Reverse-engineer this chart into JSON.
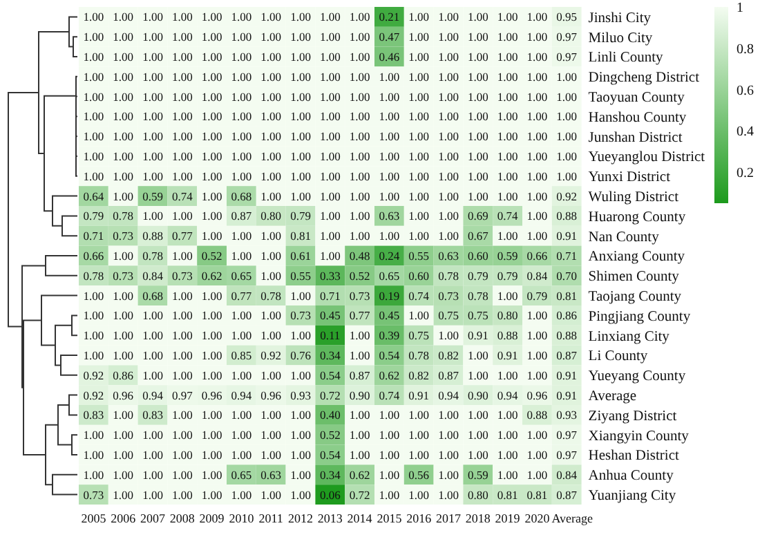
{
  "chart_data": {
    "type": "heatmap",
    "categories": [
      "2005",
      "2006",
      "2007",
      "2008",
      "2009",
      "2010",
      "2011",
      "2012",
      "2013",
      "2014",
      "2015",
      "2016",
      "2017",
      "2018",
      "2019",
      "2020",
      "Average"
    ],
    "y_categories": [
      "Jinshi City",
      "Miluo City",
      "Linli County",
      "Dingcheng District",
      "Taoyuan County",
      "Hanshou County",
      "Junshan District",
      "Yueyanglou District",
      "Yunxi District",
      "Wuling District",
      "Huarong County",
      "Nan County",
      "Anxiang County",
      "Shimen County",
      "Taojang County",
      "Pingjiang County",
      "Linxiang City",
      "Li County",
      "Yueyang County",
      "Average",
      "Ziyang District",
      "Xiangyin County",
      "Heshan District",
      "Anhua County",
      "Yuanjiang City"
    ],
    "cells": [
      [
        1,
        1,
        1,
        1,
        1,
        1,
        1,
        1,
        1,
        1,
        0.21,
        1,
        1,
        1,
        1,
        1,
        0.95
      ],
      [
        1,
        1,
        1,
        1,
        1,
        1,
        1,
        1,
        1,
        1,
        0.47,
        1,
        1,
        1,
        1,
        1,
        0.97
      ],
      [
        1,
        1,
        1,
        1,
        1,
        1,
        1,
        1,
        1,
        1,
        0.46,
        1,
        1,
        1,
        1,
        1,
        0.97
      ],
      [
        1,
        1,
        1,
        1,
        1,
        1,
        1,
        1,
        1,
        1,
        1,
        1,
        1,
        1,
        1,
        1,
        1
      ],
      [
        1,
        1,
        1,
        1,
        1,
        1,
        1,
        1,
        1,
        1,
        1,
        1,
        1,
        1,
        1,
        1,
        1
      ],
      [
        1,
        1,
        1,
        1,
        1,
        1,
        1,
        1,
        1,
        1,
        1,
        1,
        1,
        1,
        1,
        1,
        1
      ],
      [
        1,
        1,
        1,
        1,
        1,
        1,
        1,
        1,
        1,
        1,
        1,
        1,
        1,
        1,
        1,
        1,
        1
      ],
      [
        1,
        1,
        1,
        1,
        1,
        1,
        1,
        1,
        1,
        1,
        1,
        1,
        1,
        1,
        1,
        1,
        1
      ],
      [
        1,
        1,
        1,
        1,
        1,
        1,
        1,
        1,
        1,
        1,
        1,
        1,
        1,
        1,
        1,
        1,
        1
      ],
      [
        0.64,
        1,
        0.59,
        0.74,
        1,
        0.68,
        1,
        1,
        1,
        1,
        1,
        1,
        1,
        1,
        1,
        1,
        0.92
      ],
      [
        0.79,
        0.78,
        1,
        1,
        1,
        0.87,
        0.8,
        0.79,
        1,
        1,
        0.63,
        1,
        1,
        0.69,
        0.74,
        1,
        0.88
      ],
      [
        0.71,
        0.73,
        0.88,
        0.77,
        1,
        1,
        1,
        0.81,
        1,
        1,
        1,
        1,
        1,
        0.67,
        1,
        1,
        0.91
      ],
      [
        0.66,
        1,
        0.78,
        1,
        0.52,
        1,
        1,
        0.61,
        1,
        0.48,
        0.24,
        0.55,
        0.63,
        0.6,
        0.59,
        0.66,
        0.71
      ],
      [
        0.78,
        0.73,
        0.84,
        0.73,
        0.62,
        0.65,
        1,
        0.55,
        0.33,
        0.52,
        0.65,
        0.6,
        0.78,
        0.79,
        0.79,
        0.84,
        0.7
      ],
      [
        1,
        1,
        0.68,
        1,
        1,
        0.77,
        0.78,
        1,
        0.71,
        0.73,
        0.19,
        0.74,
        0.73,
        0.78,
        1,
        0.79,
        0.81
      ],
      [
        1,
        1,
        1,
        1,
        1,
        1,
        1,
        0.73,
        0.45,
        0.77,
        0.45,
        1,
        0.75,
        0.75,
        0.8,
        1,
        0.86
      ],
      [
        1,
        1,
        1,
        1,
        1,
        1,
        1,
        1,
        0.11,
        1,
        0.39,
        0.75,
        1,
        0.91,
        0.88,
        1,
        0.88
      ],
      [
        1,
        1,
        1,
        1,
        1,
        0.85,
        0.92,
        0.76,
        0.34,
        1,
        0.54,
        0.78,
        0.82,
        1,
        0.91,
        1,
        0.87
      ],
      [
        0.92,
        0.86,
        1,
        1,
        1,
        1,
        1,
        1,
        0.54,
        0.87,
        0.62,
        0.82,
        0.87,
        1,
        1,
        1,
        0.91
      ],
      [
        0.92,
        0.96,
        0.94,
        0.97,
        0.96,
        0.94,
        0.96,
        0.93,
        0.72,
        0.9,
        0.74,
        0.91,
        0.94,
        0.9,
        0.94,
        0.96,
        0.91
      ],
      [
        0.83,
        1,
        0.83,
        1,
        1,
        1,
        1,
        1,
        0.4,
        1,
        1,
        1,
        1,
        1,
        1,
        0.88,
        0.93
      ],
      [
        1,
        1,
        1,
        1,
        1,
        1,
        1,
        1,
        0.52,
        1,
        1,
        1,
        1,
        1,
        1,
        1,
        0.97
      ],
      [
        1,
        1,
        1,
        1,
        1,
        1,
        1,
        1,
        0.54,
        1,
        1,
        1,
        1,
        1,
        1,
        1,
        0.97
      ],
      [
        1,
        1,
        1,
        1,
        1,
        0.65,
        0.63,
        1,
        0.34,
        0.62,
        1,
        0.56,
        1,
        0.59,
        1,
        1,
        0.84
      ],
      [
        0.73,
        1,
        1,
        1,
        1,
        1,
        1,
        1,
        0.06,
        0.72,
        1,
        1,
        1,
        0.8,
        0.81,
        0.81,
        0.87
      ]
    ],
    "cell_labels": [
      [
        "1.00",
        "1.00",
        "1.00",
        "1.00",
        "1.00",
        "1.00",
        "1.00",
        "1.00",
        "1.00",
        "1.00",
        "0.21",
        "1.00",
        "1.00",
        "1.00",
        "1.00",
        "1.00",
        "0.95"
      ],
      [
        "1.00",
        "1.00",
        "1.00",
        "1.00",
        "1.00",
        "1.00",
        "1.00",
        "1.00",
        "1.00",
        "1.00",
        "0.47",
        "1.00",
        "1.00",
        "1.00",
        "1.00",
        "1.00",
        "0.97"
      ],
      [
        "1.00",
        "1.00",
        "1.00",
        "1.00",
        "1.00",
        "1.00",
        "1.00",
        "1.00",
        "1.00",
        "1.00",
        "0.46",
        "1.00",
        "1.00",
        "1.00",
        "1.00",
        "1.00",
        "0.97"
      ],
      [
        "1.00",
        "1.00",
        "1.00",
        "1.00",
        "1.00",
        "1.00",
        "1.00",
        "1.00",
        "1.00",
        "1.00",
        "1.00",
        "1.00",
        "1.00",
        "1.00",
        "1.00",
        "1.00",
        "1.00"
      ],
      [
        "1.00",
        "1.00",
        "1.00",
        "1.00",
        "1.00",
        "1.00",
        "1.00",
        "1.00",
        "1.00",
        "1.00",
        "1.00",
        "1.00",
        "1.00",
        "1.00",
        "1.00",
        "1.00",
        "1.00"
      ],
      [
        "1.00",
        "1.00",
        "1.00",
        "1.00",
        "1.00",
        "1.00",
        "1.00",
        "1.00",
        "1.00",
        "1.00",
        "1.00",
        "1.00",
        "1.00",
        "1.00",
        "1.00",
        "1.00",
        "1.00"
      ],
      [
        "1.00",
        "1.00",
        "1.00",
        "1.00",
        "1.00",
        "1.00",
        "1.00",
        "1.00",
        "1.00",
        "1.00",
        "1.00",
        "1.00",
        "1.00",
        "1.00",
        "1.00",
        "1.00",
        "1.00"
      ],
      [
        "1.00",
        "1.00",
        "1.00",
        "1.00",
        "1.00",
        "1.00",
        "1.00",
        "1.00",
        "1.00",
        "1.00",
        "1.00",
        "1.00",
        "1.00",
        "1.00",
        "1.00",
        "1.00",
        "1.00"
      ],
      [
        "1.00",
        "1.00",
        "1.00",
        "1.00",
        "1.00",
        "1.00",
        "1.00",
        "1.00",
        "1.00",
        "1.00",
        "1.00",
        "1.00",
        "1.00",
        "1.00",
        "1.00",
        "1.00",
        "1.00"
      ],
      [
        "0.64",
        "1.00",
        "0.59",
        "0.74",
        "1.00",
        "0.68",
        "1.00",
        "1.00",
        "1.00",
        "1.00",
        "1.00",
        "1.00",
        "1.00",
        "1.00",
        "1.00",
        "1.00",
        "0.92"
      ],
      [
        "0.79",
        "0.78",
        "1.00",
        "1.00",
        "1.00",
        "0.87",
        "0.80",
        "0.79",
        "1.00",
        "1.00",
        "0.63",
        "1.00",
        "1.00",
        "0.69",
        "0.74",
        "1.00",
        "0.88"
      ],
      [
        "0.71",
        "0.73",
        "0.88",
        "0.77",
        "1.00",
        "1.00",
        "1.00",
        "0.81",
        "1.00",
        "1.00",
        "1.00",
        "1.00",
        "1.00",
        "0.67",
        "1.00",
        "1.00",
        "0.91"
      ],
      [
        "0.66",
        "1.00",
        "0.78",
        "1.00",
        "0.52",
        "1.00",
        "1.00",
        "0.61",
        "1.00",
        "0.48",
        "0.24",
        "0.55",
        "0.63",
        "0.60",
        "0.59",
        "0.66",
        "0.71"
      ],
      [
        "0.78",
        "0.73",
        "0.84",
        "0.73",
        "0.62",
        "0.65",
        "1.00",
        "0.55",
        "0.33",
        "0.52",
        "0.65",
        "0.60",
        "0.78",
        "0.79",
        "0.79",
        "0.84",
        "0.70"
      ],
      [
        "1.00",
        "1.00",
        "0.68",
        "1.00",
        "1.00",
        "0.77",
        "0.78",
        "1.00",
        "0.71",
        "0.73",
        "0.19",
        "0.74",
        "0.73",
        "0.78",
        "1.00",
        "0.79",
        "0.81"
      ],
      [
        "1.00",
        "1.00",
        "1.00",
        "1.00",
        "1.00",
        "1.00",
        "1.00",
        "0.73",
        "0.45",
        "0.77",
        "0.45",
        "1.00",
        "0.75",
        "0.75",
        "0.80",
        "1.00",
        "0.86"
      ],
      [
        "1.00",
        "1.00",
        "1.00",
        "1.00",
        "1.00",
        "1.00",
        "1.00",
        "1.00",
        "0.11",
        "1.00",
        "0.39",
        "0.75",
        "1.00",
        "0.91",
        "0.88",
        "1.00",
        "0.88"
      ],
      [
        "1.00",
        "1.00",
        "1.00",
        "1.00",
        "1.00",
        "0.85",
        "0.92",
        "0.76",
        "0.34",
        "1.00",
        "0.54",
        "0.78",
        "0.82",
        "1.00",
        "0.91",
        "1.00",
        "0.87"
      ],
      [
        "0.92",
        "0.86",
        "1.00",
        "1.00",
        "1.00",
        "1.00",
        "1.00",
        "1.00",
        "0.54",
        "0.87",
        "0.62",
        "0.82",
        "0.87",
        "1.00",
        "1.00",
        "1.00",
        "0.91"
      ],
      [
        "0.92",
        "0.96",
        "0.94",
        "0.97",
        "0.96",
        "0.94",
        "0.96",
        "0.93",
        "0.72",
        "0.90",
        "0.74",
        "0.91",
        "0.94",
        "0.90",
        "0.94",
        "0.96",
        "0.91"
      ],
      [
        "0.83",
        "1.00",
        "0.83",
        "1.00",
        "1.00",
        "1.00",
        "1.00",
        "1.00",
        "0.40",
        "1.00",
        "1.00",
        "1.00",
        "1.00",
        "1.00",
        "1.00",
        "0.88",
        "0.93"
      ],
      [
        "1.00",
        "1.00",
        "1.00",
        "1.00",
        "1.00",
        "1.00",
        "1.00",
        "1.00",
        "0.52",
        "1.00",
        "1.00",
        "1.00",
        "1.00",
        "1.00",
        "1.00",
        "1.00",
        "0.97"
      ],
      [
        "1.00",
        "1.00",
        "1.00",
        "1.00",
        "1.00",
        "1.00",
        "1.00",
        "1.00",
        "0.54",
        "1.00",
        "1.00",
        "1.00",
        "1.00",
        "1.00",
        "1.00",
        "1.00",
        "0.97"
      ],
      [
        "1.00",
        "1.00",
        "1.00",
        "1.00",
        "1.00",
        "0.65",
        "0.63",
        "1.00",
        "0.34",
        "0.62",
        "1.00",
        "0.56",
        "1.00",
        "0.59",
        "1.00",
        "1.00",
        "0.84"
      ],
      [
        "0.73",
        "1.00",
        "1.00",
        "1.00",
        "1.00",
        "1.00",
        "1.00",
        "1.00",
        "0.06",
        "0.72",
        "1.00",
        "1.00",
        "1.00",
        "0.80",
        "0.81",
        "0.81",
        "0.87"
      ]
    ],
    "clim": [
      0.05,
      1
    ],
    "cticks": [
      0.2,
      0.4,
      0.6,
      0.8,
      1
    ]
  }
}
